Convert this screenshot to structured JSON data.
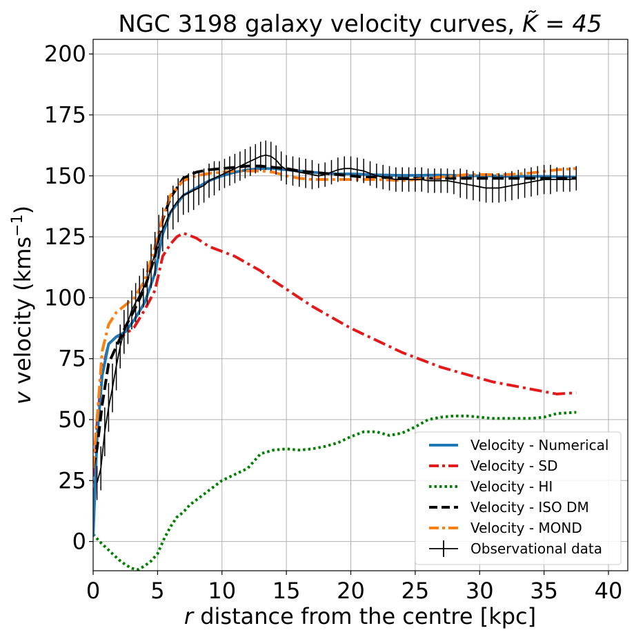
{
  "chart_data": {
    "type": "line",
    "title": "NGC 3198 galaxy velocity curves, ",
    "title_math": "K̃ = 45",
    "xlabel_var": "r",
    "xlabel": " distance from the centre [kpc]",
    "ylabel_var": "v",
    "ylabel": " velocity (kms",
    "ylabel_sup": "−1",
    "ylabel_tail": ")",
    "xlim": [
      0,
      41.5
    ],
    "ylim": [
      -12,
      206
    ],
    "xticks": [
      0,
      5,
      10,
      15,
      20,
      25,
      30,
      35,
      40
    ],
    "yticks": [
      0,
      25,
      50,
      75,
      100,
      125,
      150,
      175,
      200
    ],
    "grid": true,
    "legend_position": "bottom-right",
    "series": [
      {
        "name": "Velocity - Numerical",
        "color": "#1f77b4",
        "dash": "solid",
        "width": 4,
        "x": [
          0,
          0.3,
          0.7,
          1.2,
          1.8,
          2.5,
          3.2,
          4.0,
          4.8,
          5.4,
          6.0,
          7.0,
          8.0,
          9.0,
          10.0,
          11.0,
          12.0,
          13.0,
          14.0,
          15.0,
          16.0,
          17.0,
          18.0,
          19.0,
          20.0,
          21.0,
          22.0,
          23.0,
          24.0,
          25.0,
          26.0,
          27.0,
          28.0,
          29.0,
          30.0,
          31.0,
          32.0,
          33.0,
          34.0,
          35.0,
          36.0,
          37.5
        ],
        "y": [
          2,
          42,
          68,
          81,
          84,
          86,
          91,
          98,
          110,
          126,
          135,
          142,
          145,
          148,
          150,
          151.5,
          152.5,
          153,
          153,
          152.5,
          152,
          151.5,
          151,
          150.8,
          150.8,
          150.6,
          150.4,
          150.3,
          150.2,
          150.2,
          150.3,
          150.3,
          150.2,
          150.1,
          150,
          150,
          149.8,
          149.8,
          149.8,
          149.8,
          149.7,
          149.5
        ]
      },
      {
        "name": "Velocity - SD",
        "color": "#e31a1c",
        "dash": "dashdot",
        "width": 4,
        "x": [
          0,
          0.3,
          0.7,
          1.2,
          1.8,
          2.5,
          3.2,
          4.0,
          4.8,
          5.4,
          6.0,
          6.5,
          7.0,
          8.0,
          9.0,
          10.0,
          11.0,
          12.0,
          13.0,
          14.0,
          15.0,
          16.0,
          17.0,
          18.0,
          19.0,
          20.0,
          21.0,
          22.0,
          23.0,
          24.0,
          25.0,
          26.0,
          27.0,
          28.0,
          29.0,
          30.0,
          31.0,
          32.0,
          33.0,
          34.0,
          35.0,
          36.0,
          37.5
        ],
        "y": [
          17,
          48,
          70,
          81,
          84,
          85,
          88,
          95,
          103,
          117,
          122,
          125,
          126.5,
          124.5,
          121,
          119,
          117,
          114,
          111,
          107,
          103.5,
          100,
          96.5,
          93.5,
          90.5,
          87.5,
          85,
          82.5,
          80,
          77.5,
          75.5,
          73.5,
          71.5,
          70,
          68.5,
          67,
          65.5,
          64.5,
          63.5,
          62.5,
          61.5,
          60.5,
          61
        ]
      },
      {
        "name": "Velocity - HI",
        "color": "#008000",
        "dash": "dotted",
        "width": 4,
        "x": [
          0,
          0.5,
          1.0,
          1.5,
          2.0,
          2.5,
          3.0,
          3.5,
          4.0,
          4.5,
          5.0,
          5.5,
          6.0,
          6.5,
          7.0,
          7.5,
          8.0,
          9.0,
          10.0,
          11.0,
          12.0,
          12.5,
          13.0,
          14.0,
          15.0,
          16.0,
          17.0,
          18.0,
          19.0,
          20.0,
          21.0,
          22.0,
          23.0,
          24.0,
          25.0,
          26.0,
          27.0,
          28.0,
          29.0,
          30.0,
          31.0,
          32.0,
          33.0,
          34.0,
          35.0,
          36.0,
          37.5
        ],
        "y": [
          3,
          0,
          -2.5,
          -5,
          -7.5,
          -9.5,
          -11,
          -11.5,
          -10,
          -8,
          -5,
          1,
          6,
          10,
          12,
          15,
          17,
          21,
          25,
          27.5,
          30,
          33,
          36,
          37.5,
          38,
          37.5,
          38,
          39,
          40.5,
          43,
          45,
          45,
          43.5,
          44.5,
          47,
          50,
          51,
          51.5,
          51.5,
          51,
          50.5,
          50.5,
          50.5,
          50.5,
          51,
          52.5,
          53
        ]
      },
      {
        "name": "Velocity - ISO DM",
        "color": "#000000",
        "dash": "dashed",
        "width": 4,
        "x": [
          0,
          0.3,
          0.7,
          1.2,
          1.8,
          2.5,
          3.2,
          4.0,
          4.8,
          5.4,
          6.0,
          7.0,
          8.0,
          9.0,
          10.0,
          11.0,
          12.0,
          13.0,
          14.0,
          15.0,
          16.0,
          17.0,
          18.0,
          19.0,
          20.0,
          21.0,
          22.0,
          23.0,
          24.0,
          25.0,
          26.0,
          27.0,
          28.0,
          29.0,
          30.0,
          31.0,
          32.0,
          33.0,
          34.0,
          35.0,
          36.0,
          37.5
        ],
        "y": [
          30,
          38,
          56,
          73,
          80,
          88,
          95,
          104,
          117,
          132,
          141,
          149,
          151.5,
          152.5,
          153,
          153.5,
          154,
          154,
          153.5,
          153,
          152,
          151.5,
          151,
          150.5,
          150,
          149.5,
          149.5,
          149.2,
          149,
          149,
          149,
          149,
          149,
          149,
          149,
          149,
          149,
          149,
          149,
          149,
          149,
          149
        ]
      },
      {
        "name": "Velocity - MOND",
        "color": "#ff7f0e",
        "dash": "dashdot",
        "width": 4,
        "x": [
          0,
          0.3,
          0.7,
          1.2,
          1.8,
          2.5,
          3.2,
          4.0,
          4.8,
          5.4,
          6.0,
          7.0,
          8.0,
          9.0,
          10.0,
          11.0,
          12.0,
          13.0,
          14.0,
          15.0,
          16.0,
          17.0,
          18.0,
          19.0,
          20.0,
          21.0,
          22.0,
          23.0,
          24.0,
          25.0,
          26.0,
          27.0,
          28.0,
          29.0,
          30.0,
          31.0,
          32.0,
          33.0,
          34.0,
          35.0,
          36.0,
          37.5
        ],
        "y": [
          30,
          50,
          78,
          89,
          94,
          97,
          100,
          107,
          121,
          133,
          142,
          148,
          150,
          151,
          151.5,
          152,
          152,
          152,
          151.5,
          150,
          149,
          148.5,
          148.5,
          148.5,
          148.5,
          148.5,
          148.5,
          148.3,
          148,
          148.5,
          149,
          149.5,
          150,
          150.5,
          150.5,
          150.5,
          150.5,
          150.8,
          151.2,
          151.8,
          152.5,
          153
        ]
      }
    ],
    "observational": {
      "name": "Observational data",
      "color": "#000000",
      "x": [
        0.3,
        0.6,
        0.9,
        1.2,
        1.5,
        1.8,
        2.1,
        2.4,
        2.7,
        3.0,
        3.3,
        3.6,
        3.9,
        4.2,
        4.5,
        4.8,
        5.1,
        5.4,
        5.8,
        6.2,
        6.6,
        7.0,
        7.4,
        7.8,
        8.2,
        8.6,
        9.0,
        9.4,
        9.8,
        10.2,
        10.6,
        11.0,
        11.4,
        11.8,
        12.2,
        12.6,
        13.0,
        13.4,
        13.8,
        14.2,
        14.6,
        15.0,
        15.5,
        16.0,
        16.5,
        17.0,
        17.5,
        18.0,
        18.5,
        19.0,
        19.5,
        20.0,
        20.5,
        21.0,
        21.5,
        22.0,
        22.5,
        23.0,
        23.5,
        24.0,
        24.5,
        25.0,
        25.5,
        26.0,
        26.5,
        27.0,
        27.5,
        28.0,
        28.5,
        29.0,
        29.5,
        30.0,
        30.5,
        31.0,
        31.5,
        32.0,
        32.5,
        33.0,
        33.5,
        34.0,
        34.5,
        35.0,
        35.5,
        36.0,
        36.5,
        37.0,
        37.5
      ],
      "y": [
        24,
        30,
        45,
        55,
        63,
        72,
        80,
        86,
        90,
        95,
        98,
        101,
        104,
        106,
        113,
        118,
        125,
        128,
        133,
        137,
        140,
        142,
        143,
        144,
        145,
        146,
        148,
        149,
        150,
        151,
        152,
        153,
        154,
        155,
        156,
        157,
        158,
        158.5,
        158,
        156.5,
        154,
        152.5,
        152,
        151.5,
        151,
        150.5,
        150,
        150.5,
        151.5,
        152.5,
        153,
        153,
        152.5,
        152,
        151,
        150,
        149.5,
        149,
        148.5,
        148.5,
        148.5,
        148.5,
        148.5,
        148,
        148,
        148,
        148,
        147.5,
        147,
        146.5,
        146,
        145.5,
        145,
        145,
        145,
        145.5,
        146,
        146.5,
        147,
        147.5,
        148,
        148.5,
        148.5,
        148.5,
        148.5,
        148.5,
        149
      ],
      "err": [
        7,
        9,
        10,
        10,
        10,
        10,
        9,
        9,
        9,
        8,
        8,
        8,
        8,
        9,
        9,
        9,
        9,
        9,
        9,
        9,
        9,
        8,
        8,
        8,
        7,
        7,
        7,
        7,
        6,
        6,
        6,
        6,
        6,
        6,
        6,
        6,
        6,
        6,
        6,
        6,
        6,
        6,
        6,
        6,
        6,
        6,
        5,
        5,
        5,
        5,
        5,
        5,
        5,
        5,
        5,
        5,
        5,
        5,
        5,
        5,
        5,
        5,
        5,
        5,
        5,
        5,
        5,
        5,
        6,
        6,
        6,
        6,
        6,
        6,
        6,
        6,
        6,
        6,
        6,
        6,
        6,
        6,
        6,
        5,
        5,
        5,
        5
      ]
    }
  }
}
